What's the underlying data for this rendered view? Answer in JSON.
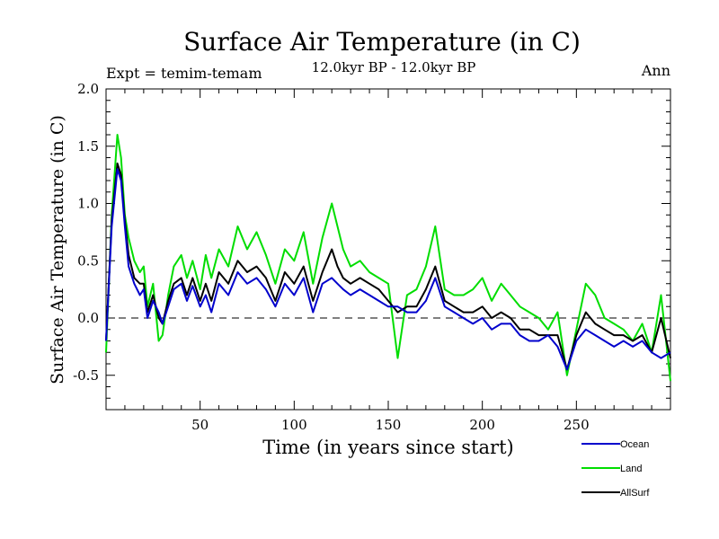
{
  "chart_data": {
    "type": "line",
    "title": "Surface Air Temperature (in C)",
    "subtitle": "12.0kyr BP - 12.0kyr BP",
    "left_label": "Expt = temim-temam",
    "right_label": "Ann",
    "xlabel": "Time (in years since start)",
    "ylabel": "Surface Air Temperature (in C)",
    "xlim": [
      0,
      300
    ],
    "ylim": [
      -0.8,
      2.0
    ],
    "x_ticks": [
      50,
      100,
      150,
      200,
      250
    ],
    "y_ticks": [
      -0.5,
      0.0,
      0.5,
      1.0,
      1.5,
      2.0
    ],
    "y_tick_labels": [
      "-0.5",
      "0.0",
      "0.5",
      "1.0",
      "1.5",
      "2.0"
    ],
    "reference_line": 0.0,
    "series": [
      {
        "name": "Ocean",
        "color": "#0000cc",
        "x": [
          0,
          3,
          6,
          8,
          10,
          12,
          15,
          18,
          20,
          22,
          25,
          28,
          30,
          33,
          36,
          40,
          43,
          46,
          50,
          53,
          56,
          60,
          65,
          70,
          75,
          80,
          85,
          90,
          95,
          100,
          105,
          110,
          115,
          120,
          123,
          126,
          130,
          135,
          140,
          145,
          150,
          155,
          160,
          165,
          170,
          175,
          180,
          185,
          190,
          195,
          200,
          205,
          210,
          215,
          220,
          225,
          230,
          235,
          240,
          245,
          250,
          255,
          260,
          265,
          270,
          275,
          280,
          285,
          290,
          295,
          300
        ],
        "y": [
          -0.2,
          0.8,
          1.3,
          1.2,
          0.8,
          0.45,
          0.3,
          0.2,
          0.25,
          0.0,
          0.15,
          0.05,
          -0.05,
          0.1,
          0.25,
          0.3,
          0.15,
          0.28,
          0.1,
          0.2,
          0.05,
          0.3,
          0.2,
          0.4,
          0.3,
          0.35,
          0.25,
          0.1,
          0.3,
          0.2,
          0.35,
          0.05,
          0.3,
          0.35,
          0.3,
          0.25,
          0.2,
          0.25,
          0.2,
          0.15,
          0.1,
          0.1,
          0.05,
          0.05,
          0.15,
          0.35,
          0.1,
          0.05,
          0.0,
          -0.05,
          0.0,
          -0.1,
          -0.05,
          -0.05,
          -0.15,
          -0.2,
          -0.2,
          -0.15,
          -0.25,
          -0.45,
          -0.2,
          -0.1,
          -0.15,
          -0.2,
          -0.25,
          -0.2,
          -0.25,
          -0.2,
          -0.3,
          -0.35,
          -0.3
        ]
      },
      {
        "name": "Land",
        "color": "#00dd00",
        "x": [
          0,
          3,
          6,
          8,
          10,
          12,
          15,
          18,
          20,
          22,
          25,
          28,
          30,
          33,
          36,
          40,
          43,
          46,
          50,
          53,
          56,
          60,
          65,
          70,
          75,
          80,
          85,
          90,
          95,
          100,
          105,
          110,
          115,
          120,
          123,
          126,
          130,
          135,
          140,
          145,
          150,
          155,
          160,
          165,
          170,
          175,
          180,
          185,
          190,
          195,
          200,
          205,
          210,
          215,
          220,
          225,
          230,
          235,
          240,
          245,
          250,
          255,
          260,
          265,
          270,
          275,
          280,
          285,
          290,
          295,
          300
        ],
        "y": [
          -0.3,
          0.9,
          1.6,
          1.4,
          0.9,
          0.7,
          0.5,
          0.4,
          0.45,
          0.1,
          0.3,
          -0.2,
          -0.15,
          0.2,
          0.45,
          0.55,
          0.35,
          0.5,
          0.25,
          0.55,
          0.35,
          0.6,
          0.45,
          0.8,
          0.6,
          0.75,
          0.55,
          0.3,
          0.6,
          0.5,
          0.75,
          0.3,
          0.7,
          1.0,
          0.8,
          0.6,
          0.45,
          0.5,
          0.4,
          0.35,
          0.3,
          -0.35,
          0.2,
          0.25,
          0.45,
          0.8,
          0.25,
          0.2,
          0.2,
          0.25,
          0.35,
          0.15,
          0.3,
          0.2,
          0.1,
          0.05,
          0.0,
          -0.1,
          0.05,
          -0.5,
          -0.1,
          0.3,
          0.2,
          0.0,
          -0.05,
          -0.1,
          -0.2,
          -0.05,
          -0.3,
          0.2,
          -0.55
        ]
      },
      {
        "name": "AllSurf",
        "color": "#000000",
        "x": [
          0,
          3,
          6,
          8,
          10,
          12,
          15,
          18,
          20,
          22,
          25,
          28,
          30,
          33,
          36,
          40,
          43,
          46,
          50,
          53,
          56,
          60,
          65,
          70,
          75,
          80,
          85,
          90,
          95,
          100,
          105,
          110,
          115,
          120,
          123,
          126,
          130,
          135,
          140,
          145,
          150,
          155,
          160,
          165,
          170,
          175,
          180,
          185,
          190,
          195,
          200,
          205,
          210,
          215,
          220,
          225,
          230,
          235,
          240,
          245,
          250,
          255,
          260,
          265,
          270,
          275,
          280,
          285,
          290,
          295,
          300
        ],
        "y": [
          -0.2,
          0.85,
          1.35,
          1.25,
          0.85,
          0.55,
          0.35,
          0.3,
          0.3,
          0.05,
          0.2,
          0.0,
          -0.05,
          0.15,
          0.3,
          0.35,
          0.2,
          0.35,
          0.15,
          0.3,
          0.15,
          0.4,
          0.3,
          0.5,
          0.4,
          0.45,
          0.35,
          0.15,
          0.4,
          0.3,
          0.45,
          0.15,
          0.4,
          0.6,
          0.45,
          0.35,
          0.3,
          0.35,
          0.3,
          0.25,
          0.15,
          0.05,
          0.1,
          0.1,
          0.25,
          0.45,
          0.15,
          0.1,
          0.05,
          0.05,
          0.1,
          0.0,
          0.05,
          0.0,
          -0.1,
          -0.1,
          -0.15,
          -0.15,
          -0.15,
          -0.45,
          -0.15,
          0.05,
          -0.05,
          -0.1,
          -0.15,
          -0.15,
          -0.2,
          -0.15,
          -0.3,
          0.0,
          -0.35
        ]
      }
    ],
    "legend": {
      "position": "bottom-right",
      "entries": [
        "Ocean",
        "Land",
        "AllSurf"
      ]
    }
  }
}
